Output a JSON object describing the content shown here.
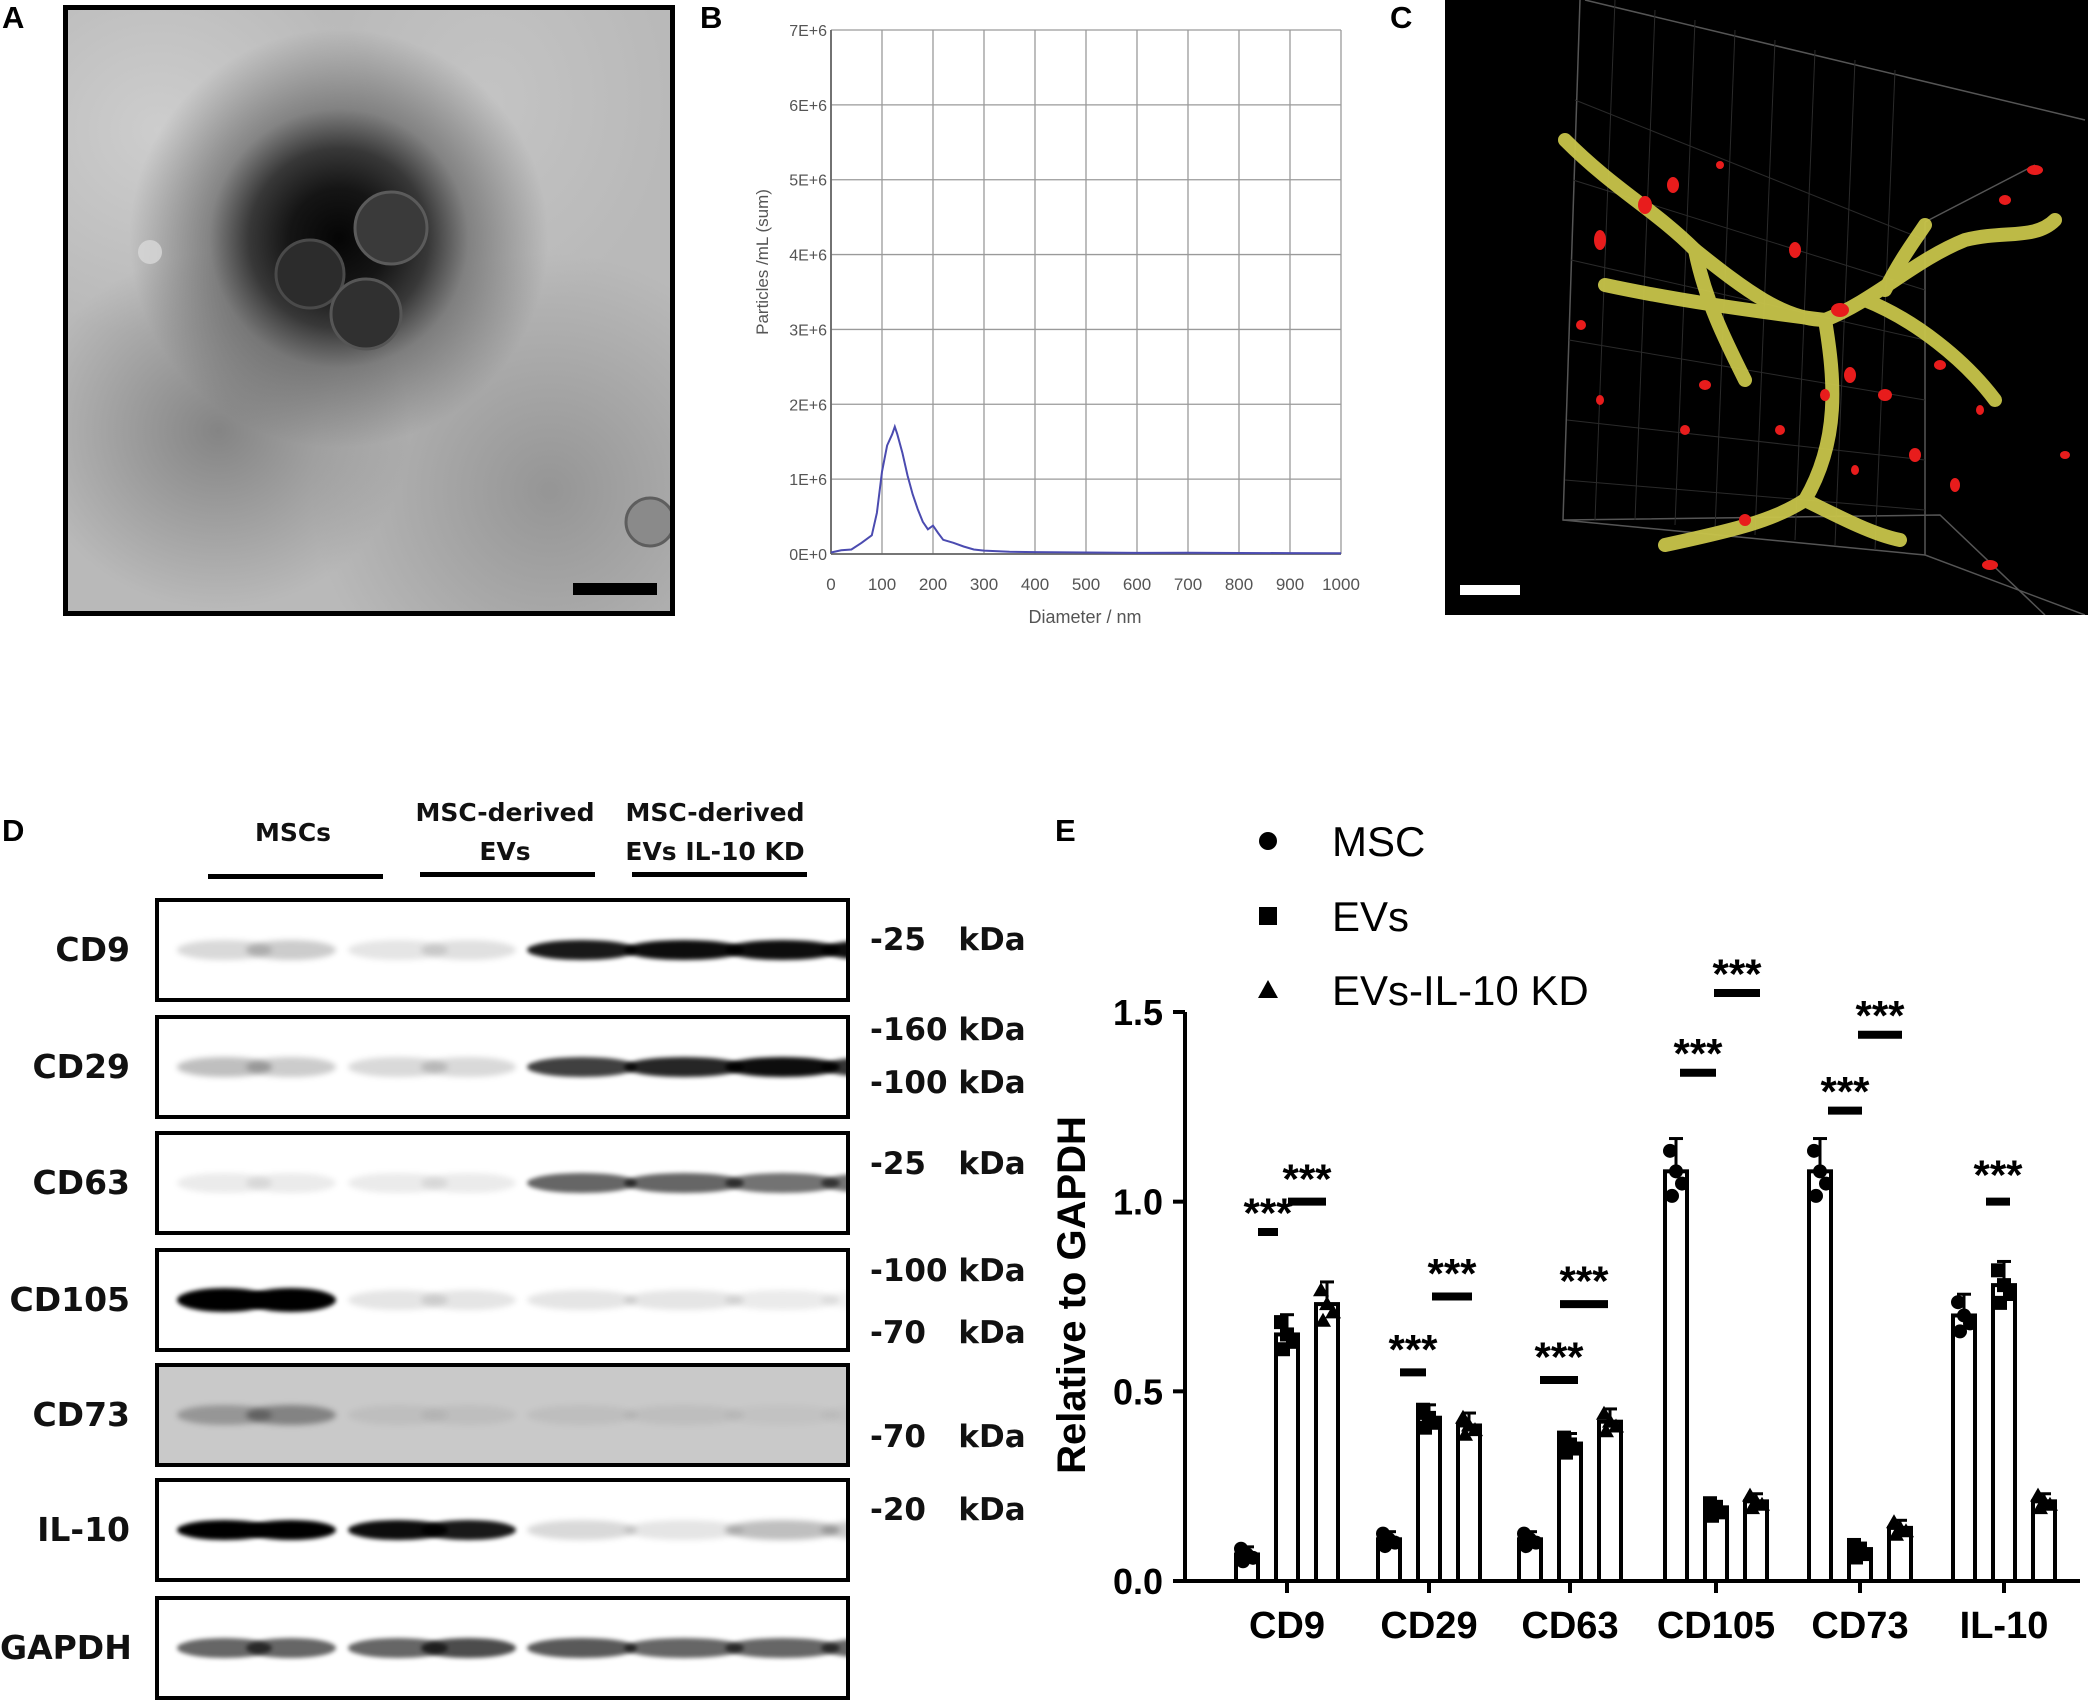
{
  "panels": {
    "a": "A",
    "b": "B",
    "c": "C",
    "d": "D",
    "e": "E"
  },
  "nta": {
    "ylabel": "Particles /mL (sum)",
    "xlabel": "Diameter / nm",
    "yticks": [
      "0E+0",
      "1E+6",
      "2E+6",
      "3E+6",
      "4E+6",
      "5E+6",
      "6E+6",
      "7E+6"
    ],
    "xticks": [
      "0",
      "100",
      "200",
      "300",
      "400",
      "500",
      "600",
      "700",
      "800",
      "900",
      "1000"
    ]
  },
  "western": {
    "groups": [
      "MSCs",
      "MSC-derived",
      "EVs",
      "MSC-derived",
      "EVs IL-10 KD"
    ],
    "rows": [
      {
        "label": "CD9",
        "markers": [
          "-25   kDa"
        ]
      },
      {
        "label": "CD29",
        "markers": [
          "-160 kDa",
          "-100 kDa"
        ]
      },
      {
        "label": "CD63",
        "markers": [
          "-25   kDa"
        ]
      },
      {
        "label": "CD105",
        "markers": [
          "-100 kDa",
          "-70   kDa"
        ]
      },
      {
        "label": "CD73",
        "markers": [
          "-70   kDa"
        ]
      },
      {
        "label": "IL-10",
        "markers": [
          "-20   kDa"
        ]
      },
      {
        "label": "GAPDH",
        "markers": []
      }
    ]
  },
  "chart_data": [
    {
      "type": "line",
      "ylabel": "Particles /mL (sum)",
      "xlabel": "Diameter / nm",
      "xlim": [
        0,
        1000
      ],
      "ylim": [
        0,
        7000000
      ],
      "x": [
        0,
        20,
        40,
        60,
        80,
        90,
        100,
        110,
        120,
        125,
        130,
        140,
        150,
        160,
        170,
        180,
        190,
        200,
        210,
        220,
        240,
        260,
        280,
        300,
        350,
        400,
        500,
        600,
        700,
        800,
        900,
        1000
      ],
      "y": [
        20000,
        50000,
        60000,
        150000,
        250000,
        550000,
        1100000,
        1450000,
        1600000,
        1700000,
        1600000,
        1350000,
        1050000,
        800000,
        600000,
        430000,
        330000,
        380000,
        280000,
        190000,
        150000,
        100000,
        60000,
        45000,
        30000,
        25000,
        20000,
        15000,
        18000,
        14000,
        12000,
        10000
      ],
      "grid": true
    },
    {
      "type": "bar",
      "ylabel": "Relative to GAPDH",
      "ylim": [
        0,
        1.5
      ],
      "yticks": [
        "0.0",
        "0.5",
        "1.0",
        "1.5"
      ],
      "categories": [
        "CD9",
        "CD29",
        "CD63",
        "CD105",
        "CD73",
        "IL-10"
      ],
      "series": [
        {
          "name": "MSC",
          "marker": "circle",
          "values": [
            0.07,
            0.11,
            0.11,
            1.08,
            1.08,
            0.7
          ]
        },
        {
          "name": "EVs",
          "marker": "square",
          "values": [
            0.65,
            0.43,
            0.36,
            0.19,
            0.08,
            0.78
          ]
        },
        {
          "name": "EVs-IL-10 KD",
          "marker": "triangle",
          "values": [
            0.73,
            0.41,
            0.42,
            0.21,
            0.14,
            0.21
          ]
        }
      ],
      "annotations": [
        "***",
        "***",
        "***",
        "***",
        "***",
        "***",
        "***",
        "***",
        "***",
        "***",
        "***"
      ],
      "legend_position": "top"
    }
  ]
}
